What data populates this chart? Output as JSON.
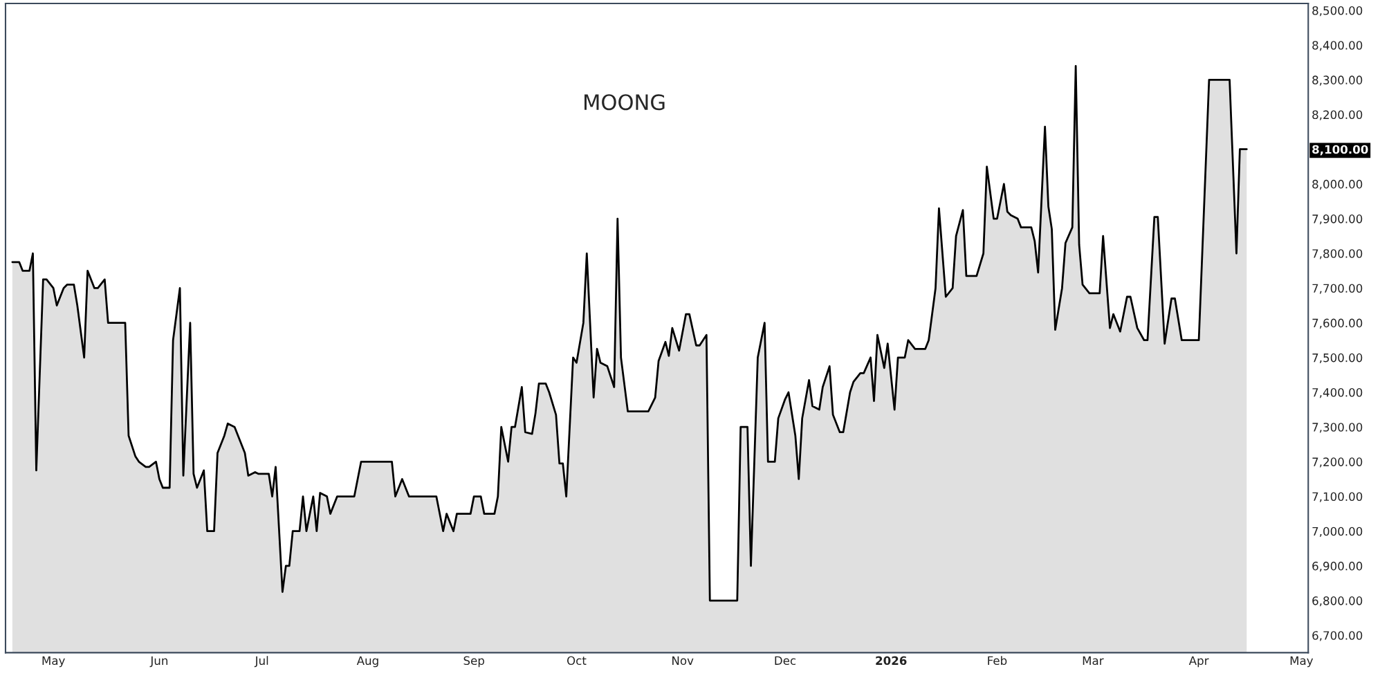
{
  "chart_data": {
    "type": "area",
    "title": "MOONG",
    "x": [
      "2025-04-19",
      "2025-04-21",
      "2025-04-22",
      "2025-04-24",
      "2025-04-25",
      "2025-04-26",
      "2025-04-28",
      "2025-04-29",
      "2025-05-01",
      "2025-05-02",
      "2025-05-04",
      "2025-05-05",
      "2025-05-07",
      "2025-05-08",
      "2025-05-10",
      "2025-05-11",
      "2025-05-13",
      "2025-05-14",
      "2025-05-16",
      "2025-05-17",
      "2025-05-19",
      "2025-05-20",
      "2025-05-22",
      "2025-05-23",
      "2025-05-25",
      "2025-05-26",
      "2025-05-28",
      "2025-05-29",
      "2025-05-31",
      "2025-06-01",
      "2025-06-02",
      "2025-06-04",
      "2025-06-05",
      "2025-06-07",
      "2025-06-08",
      "2025-06-10",
      "2025-06-11",
      "2025-06-12",
      "2025-06-14",
      "2025-06-15",
      "2025-06-17",
      "2025-06-18",
      "2025-06-20",
      "2025-06-21",
      "2025-06-23",
      "2025-06-24",
      "2025-06-26",
      "2025-06-27",
      "2025-06-29",
      "2025-06-30",
      "2025-07-01",
      "2025-07-03",
      "2025-07-04",
      "2025-07-05",
      "2025-07-07",
      "2025-07-08",
      "2025-07-09",
      "2025-07-10",
      "2025-07-12",
      "2025-07-13",
      "2025-07-14",
      "2025-07-16",
      "2025-07-17",
      "2025-07-18",
      "2025-07-20",
      "2025-07-21",
      "2025-07-23",
      "2025-07-24",
      "2025-07-25",
      "2025-07-27",
      "2025-07-28",
      "2025-07-30",
      "2025-07-31",
      "2025-08-02",
      "2025-08-03",
      "2025-08-05",
      "2025-08-06",
      "2025-08-08",
      "2025-08-09",
      "2025-08-11",
      "2025-08-13",
      "2025-08-15",
      "2025-08-16",
      "2025-08-18",
      "2025-08-20",
      "2025-08-21",
      "2025-08-23",
      "2025-08-24",
      "2025-08-26",
      "2025-08-27",
      "2025-08-29",
      "2025-08-31",
      "2025-09-01",
      "2025-09-03",
      "2025-09-04",
      "2025-09-05",
      "2025-09-07",
      "2025-09-08",
      "2025-09-09",
      "2025-09-11",
      "2025-09-12",
      "2025-09-13",
      "2025-09-15",
      "2025-09-16",
      "2025-09-18",
      "2025-09-19",
      "2025-09-20",
      "2025-09-22",
      "2025-09-23",
      "2025-09-25",
      "2025-09-26",
      "2025-09-27",
      "2025-09-28",
      "2025-09-30",
      "2025-10-01",
      "2025-10-03",
      "2025-10-04",
      "2025-10-06",
      "2025-10-07",
      "2025-10-08",
      "2025-10-10",
      "2025-10-12",
      "2025-10-13",
      "2025-10-14",
      "2025-10-16",
      "2025-10-17",
      "2025-10-19",
      "2025-10-21",
      "2025-10-22",
      "2025-10-24",
      "2025-10-25",
      "2025-10-27",
      "2025-10-28",
      "2025-10-29",
      "2025-10-31",
      "2025-11-02",
      "2025-11-03",
      "2025-11-05",
      "2025-11-06",
      "2025-11-08",
      "2025-11-09",
      "2025-11-17",
      "2025-11-18",
      "2025-11-20",
      "2025-11-21",
      "2025-11-23",
      "2025-11-25",
      "2025-11-26",
      "2025-11-28",
      "2025-11-29",
      "2025-12-01",
      "2025-12-02",
      "2025-12-04",
      "2025-12-05",
      "2025-12-06",
      "2025-12-08",
      "2025-12-09",
      "2025-12-11",
      "2025-12-12",
      "2025-12-14",
      "2025-12-15",
      "2025-12-17",
      "2025-12-18",
      "2025-12-20",
      "2025-12-21",
      "2025-12-23",
      "2025-12-24",
      "2025-12-26",
      "2025-12-27",
      "2025-12-28",
      "2025-12-30",
      "2025-12-31",
      "2026-01-02",
      "2026-01-03",
      "2026-01-05",
      "2026-01-06",
      "2026-01-08",
      "2026-01-09",
      "2026-01-11",
      "2026-01-12",
      "2026-01-14",
      "2026-01-15",
      "2026-01-17",
      "2026-01-19",
      "2026-01-20",
      "2026-01-22",
      "2026-01-23",
      "2026-01-25",
      "2026-01-26",
      "2026-01-28",
      "2026-01-29",
      "2026-01-31",
      "2026-02-01",
      "2026-02-03",
      "2026-02-04",
      "2026-02-05",
      "2026-02-07",
      "2026-02-08",
      "2026-02-09",
      "2026-02-11",
      "2026-02-12",
      "2026-02-13",
      "2026-02-15",
      "2026-02-16",
      "2026-02-17",
      "2026-02-18",
      "2026-02-20",
      "2026-02-21",
      "2026-02-23",
      "2026-02-24",
      "2026-02-25",
      "2026-02-26",
      "2026-02-28",
      "2026-03-01",
      "2026-03-03",
      "2026-03-04",
      "2026-03-06",
      "2026-03-07",
      "2026-03-09",
      "2026-03-11",
      "2026-03-12",
      "2026-03-14",
      "2026-03-16",
      "2026-03-17",
      "2026-03-19",
      "2026-03-20",
      "2026-03-22",
      "2026-03-24",
      "2026-03-25",
      "2026-03-27",
      "2026-03-29",
      "2026-03-31",
      "2026-04-01",
      "2026-04-04",
      "2026-04-10",
      "2026-04-12",
      "2026-04-13",
      "2026-04-15"
    ],
    "series": [
      {
        "color": "#000000",
        "values": [
          7775,
          7775,
          7750,
          7750,
          7800,
          7175,
          7725,
          7725,
          7700,
          7650,
          7700,
          7710,
          7710,
          7650,
          7500,
          7750,
          7700,
          7700,
          7725,
          7600,
          7600,
          7600,
          7600,
          7275,
          7215,
          7200,
          7185,
          7185,
          7200,
          7150,
          7125,
          7125,
          7550,
          7700,
          7160,
          7600,
          7165,
          7125,
          7175,
          7000,
          7000,
          7225,
          7275,
          7310,
          7300,
          7275,
          7225,
          7160,
          7170,
          7165,
          7165,
          7165,
          7100,
          7185,
          6825,
          6900,
          6900,
          7000,
          7000,
          7100,
          7000,
          7100,
          7000,
          7110,
          7100,
          7050,
          7100,
          7100,
          7100,
          7100,
          7100,
          7200,
          7200,
          7200,
          7200,
          7200,
          7200,
          7200,
          7100,
          7150,
          7100,
          7100,
          7100,
          7100,
          7100,
          7100,
          7000,
          7050,
          7000,
          7050,
          7050,
          7050,
          7100,
          7100,
          7050,
          7050,
          7050,
          7100,
          7300,
          7200,
          7300,
          7300,
          7415,
          7285,
          7280,
          7340,
          7425,
          7425,
          7400,
          7335,
          7195,
          7195,
          7100,
          7500,
          7485,
          7600,
          7800,
          7385,
          7525,
          7485,
          7475,
          7415,
          7900,
          7500,
          7345,
          7345,
          7345,
          7345,
          7345,
          7385,
          7490,
          7545,
          7505,
          7585,
          7520,
          7625,
          7625,
          7535,
          7535,
          7565,
          6800,
          6800,
          7300,
          7300,
          6900,
          7500,
          7600,
          7200,
          7200,
          7325,
          7380,
          7400,
          7275,
          7150,
          7325,
          7435,
          7360,
          7350,
          7415,
          7475,
          7335,
          7285,
          7285,
          7400,
          7430,
          7455,
          7455,
          7500,
          7375,
          7565,
          7470,
          7540,
          7350,
          7500,
          7500,
          7550,
          7525,
          7525,
          7525,
          7550,
          7700,
          7930,
          7675,
          7700,
          7850,
          7925,
          7735,
          7735,
          7735,
          7800,
          8050,
          7900,
          7900,
          8000,
          7920,
          7910,
          7900,
          7875,
          7875,
          7875,
          7835,
          7745,
          8165,
          7935,
          7870,
          7580,
          7700,
          7830,
          7875,
          8340,
          7825,
          7710,
          7685,
          7685,
          7685,
          7850,
          7585,
          7625,
          7575,
          7675,
          7675,
          7585,
          7550,
          7550,
          7905,
          7905,
          7540,
          7670,
          7670,
          7550,
          7550,
          7550,
          7550,
          8300,
          8300,
          7800,
          8100,
          8100
        ]
      }
    ],
    "xlim": [
      "2025-04-17",
      "2026-05-03"
    ],
    "xticks": [
      {
        "value": "2025-05-01",
        "label": "May"
      },
      {
        "value": "2025-06-01",
        "label": "Jun"
      },
      {
        "value": "2025-07-01",
        "label": "Jul"
      },
      {
        "value": "2025-08-01",
        "label": "Aug"
      },
      {
        "value": "2025-09-01",
        "label": "Sep"
      },
      {
        "value": "2025-10-01",
        "label": "Oct"
      },
      {
        "value": "2025-11-01",
        "label": "Nov"
      },
      {
        "value": "2025-12-01",
        "label": "Dec"
      },
      {
        "value": "2026-01-01",
        "label": "2026"
      },
      {
        "value": "2026-02-01",
        "label": "Feb"
      },
      {
        "value": "2026-03-01",
        "label": "Mar"
      },
      {
        "value": "2026-04-01",
        "label": "Apr"
      },
      {
        "value": "2026-05-01",
        "label": "May"
      }
    ],
    "ylim": [
      6650,
      8520
    ],
    "yticks": [
      {
        "value": 6700,
        "label": "6,700.00"
      },
      {
        "value": 6800,
        "label": "6,800.00"
      },
      {
        "value": 6900,
        "label": "6,900.00"
      },
      {
        "value": 7000,
        "label": "7,000.00"
      },
      {
        "value": 7100,
        "label": "7,100.00"
      },
      {
        "value": 7200,
        "label": "7,200.00"
      },
      {
        "value": 7300,
        "label": "7,300.00"
      },
      {
        "value": 7400,
        "label": "7,400.00"
      },
      {
        "value": 7500,
        "label": "7,500.00"
      },
      {
        "value": 7600,
        "label": "7,600.00"
      },
      {
        "value": 7700,
        "label": "7,700.00"
      },
      {
        "value": 7800,
        "label": "7,800.00"
      },
      {
        "value": 7900,
        "label": "7,900.00"
      },
      {
        "value": 8000,
        "label": "8,000.00"
      },
      {
        "value": 8100,
        "label": "8,100.00"
      },
      {
        "value": 8200,
        "label": "8,200.00"
      },
      {
        "value": 8300,
        "label": "8,300.00"
      },
      {
        "value": 8400,
        "label": "8,400.00"
      },
      {
        "value": 8500,
        "label": "8,500.00"
      }
    ],
    "grid": false
  }
}
